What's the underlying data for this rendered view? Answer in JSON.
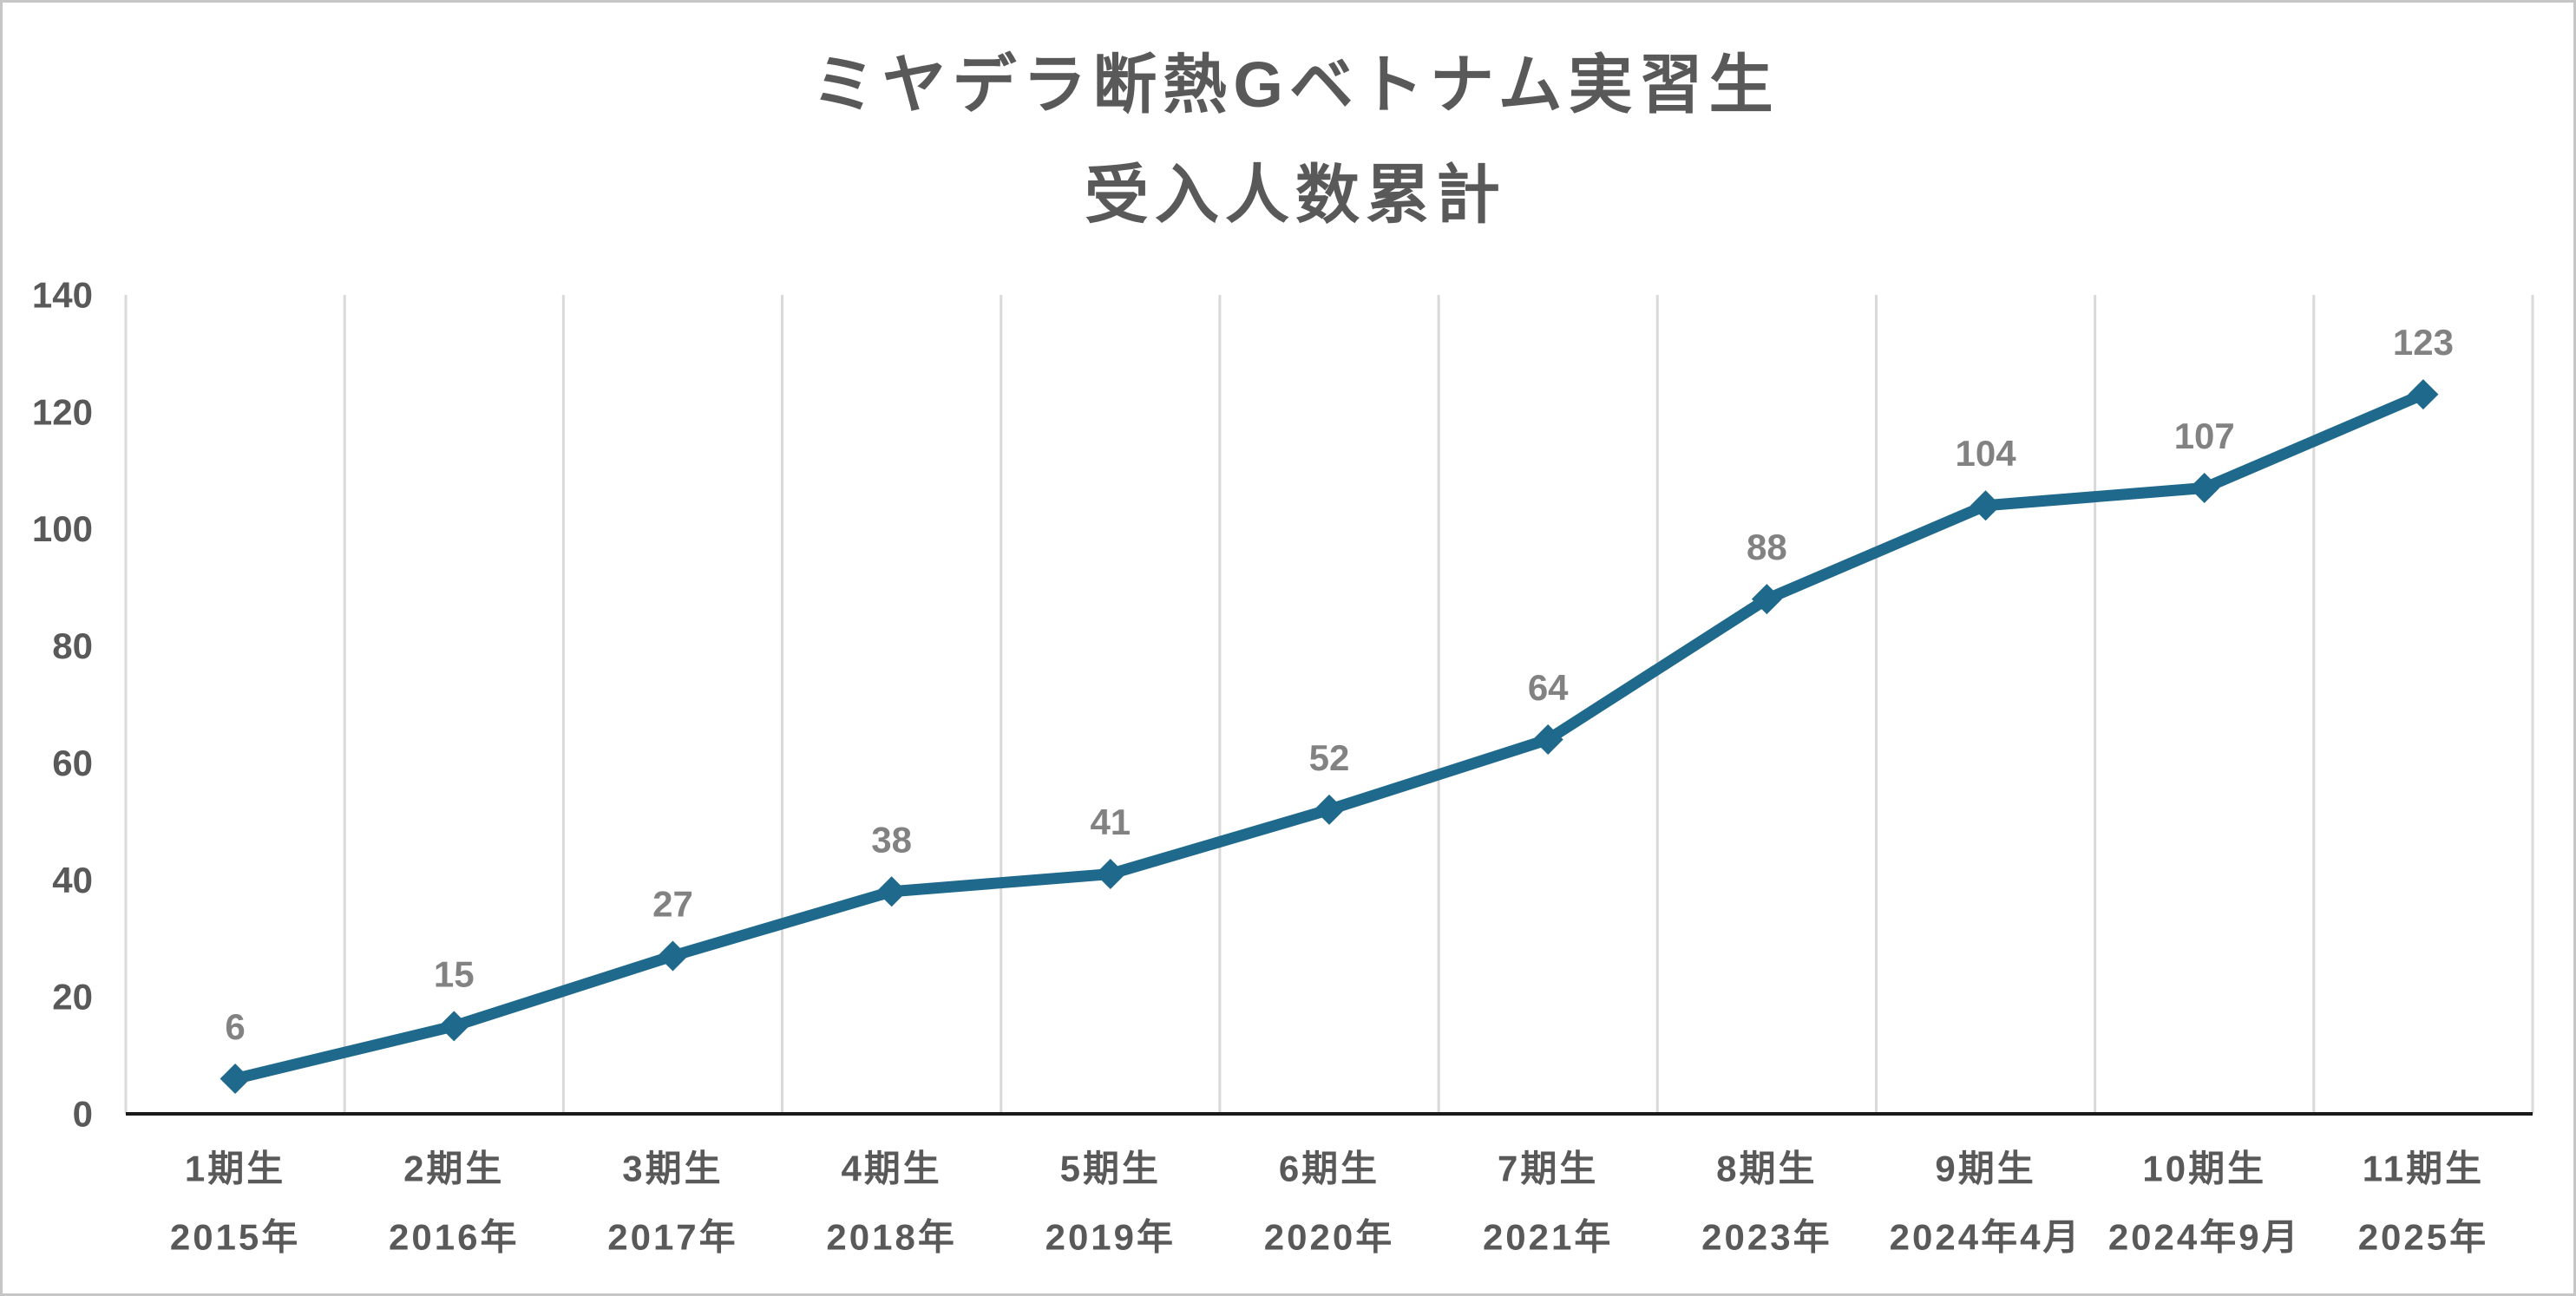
{
  "title": {
    "line1": "ミヤデラ断熱Gベトナム実習生",
    "line2": "受入人数累計"
  },
  "chart_data": {
    "type": "line",
    "title": "ミヤデラ断熱Gベトナム実習生 受入人数累計",
    "categories": [
      [
        "1期生",
        "2015年"
      ],
      [
        "2期生",
        "2016年"
      ],
      [
        "3期生",
        "2017年"
      ],
      [
        "4期生",
        "2018年"
      ],
      [
        "5期生",
        "2019年"
      ],
      [
        "6期生",
        "2020年"
      ],
      [
        "7期生",
        "2021年"
      ],
      [
        "8期生",
        "2023年"
      ],
      [
        "9期生",
        "2024年4月"
      ],
      [
        "10期生",
        "2024年9月"
      ],
      [
        "11期生",
        "2025年"
      ]
    ],
    "series": [
      {
        "name": "受入人数累計",
        "values": [
          6,
          15,
          27,
          38,
          41,
          52,
          64,
          88,
          104,
          107,
          123
        ]
      }
    ],
    "data_labels": [
      "6",
      "15",
      "27",
      "38",
      "41",
      "52",
      "64",
      "88",
      "104",
      "107",
      "123"
    ],
    "xlabel": "",
    "ylabel": "",
    "ylim": [
      0,
      140
    ],
    "y_ticks": [
      0,
      20,
      40,
      60,
      80,
      100,
      120,
      140
    ],
    "grid": "vertical-only",
    "legend": "none",
    "marker": "diamond",
    "colors": {
      "line": "#1F698C",
      "marker": "#1F698C",
      "data_label": "#828282",
      "axis_label": "#595959",
      "title": "#595959",
      "gridline": "#D9D9D9",
      "axis_line": "#1A1A1A",
      "border": "#C6C6C6",
      "background": "#FFFFFF"
    }
  }
}
